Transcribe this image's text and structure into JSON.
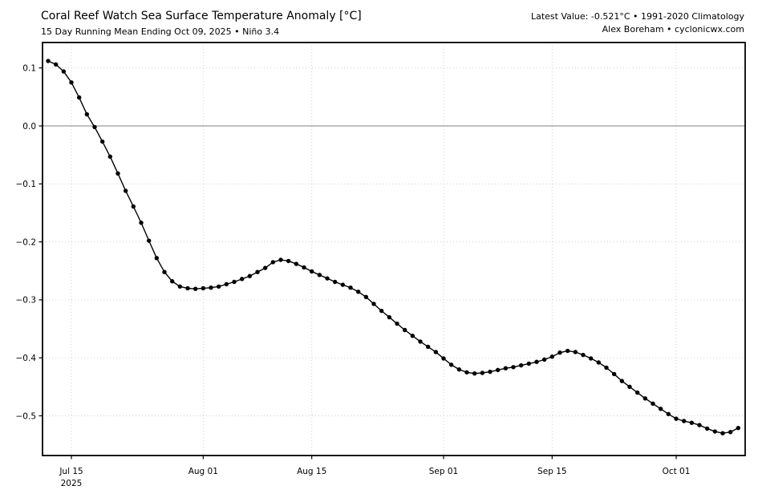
{
  "header": {
    "title": "Coral Reef Watch Sea Surface Temperature Anomaly [°C]",
    "subtitle": "15 Day Running Mean Ending Oct 09, 2025 • Niño 3.4",
    "latest_value_line": "Latest Value: -0.521°C • 1991-2020 Climatology",
    "credit_line": "Alex Boreham • cyclonicwx.com"
  },
  "colors": {
    "background": "#ffffff",
    "text": "#000000",
    "line": "#000000",
    "marker": "#000000",
    "zero_line": "#808080",
    "gridline": "#cccccc",
    "axis": "#000000"
  },
  "chart_data": {
    "type": "line",
    "title": "Coral Reef Watch Sea Surface Temperature Anomaly [°C]",
    "subtitle": "15 Day Running Mean Ending Oct 09, 2025 • Niño 3.4",
    "region": "Niño 3.4",
    "climatology_baseline": "1991-2020",
    "latest_value_c": -0.521,
    "xlabel": "",
    "ylabel": "",
    "ylim": [
      -0.568,
      0.144
    ],
    "grid": "dotted gridlines at ticks; solid gray line at 0.0",
    "legend": "none",
    "yticks": [
      {
        "value": 0.1,
        "label": "0.1"
      },
      {
        "value": 0.0,
        "label": "0.0"
      },
      {
        "value": -0.1,
        "label": "−0.1"
      },
      {
        "value": -0.2,
        "label": "−0.2"
      },
      {
        "value": -0.3,
        "label": "−0.3"
      },
      {
        "value": -0.4,
        "label": "−0.4"
      },
      {
        "value": -0.5,
        "label": "−0.5"
      }
    ],
    "xticks": [
      {
        "day_index": 3,
        "label": "Jul 15",
        "sublabel": "2025"
      },
      {
        "day_index": 20,
        "label": "Aug 01",
        "sublabel": ""
      },
      {
        "day_index": 34,
        "label": "Aug 15",
        "sublabel": ""
      },
      {
        "day_index": 51,
        "label": "Sep 01",
        "sublabel": ""
      },
      {
        "day_index": 65,
        "label": "Sep 15",
        "sublabel": ""
      },
      {
        "day_index": 81,
        "label": "Oct 01",
        "sublabel": ""
      }
    ],
    "series": [
      {
        "name": "15 Day Running Mean SST Anomaly (Niño 3.4)",
        "start_date": "2025-07-12",
        "end_date": "2025-10-09",
        "frequency": "daily",
        "marker": "circle",
        "values": [
          0.112,
          0.106,
          0.094,
          0.075,
          0.049,
          0.02,
          -0.002,
          -0.027,
          -0.053,
          -0.082,
          -0.112,
          -0.139,
          -0.167,
          -0.198,
          -0.228,
          -0.252,
          -0.268,
          -0.277,
          -0.28,
          -0.281,
          -0.28,
          -0.279,
          -0.277,
          -0.273,
          -0.269,
          -0.264,
          -0.259,
          -0.252,
          -0.245,
          -0.235,
          -0.231,
          -0.233,
          -0.238,
          -0.244,
          -0.251,
          -0.257,
          -0.263,
          -0.269,
          -0.274,
          -0.279,
          -0.286,
          -0.295,
          -0.307,
          -0.319,
          -0.33,
          -0.341,
          -0.352,
          -0.362,
          -0.372,
          -0.381,
          -0.39,
          -0.401,
          -0.412,
          -0.42,
          -0.425,
          -0.427,
          -0.426,
          -0.424,
          -0.421,
          -0.418,
          -0.416,
          -0.413,
          -0.41,
          -0.407,
          -0.403,
          -0.398,
          -0.391,
          -0.388,
          -0.39,
          -0.395,
          -0.401,
          -0.408,
          -0.417,
          -0.428,
          -0.44,
          -0.45,
          -0.46,
          -0.47,
          -0.479,
          -0.488,
          -0.497,
          -0.505,
          -0.509,
          -0.512,
          -0.516,
          -0.522,
          -0.527,
          -0.53,
          -0.528,
          -0.521
        ]
      }
    ]
  }
}
